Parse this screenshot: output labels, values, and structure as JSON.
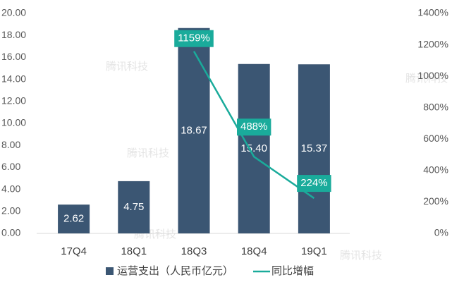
{
  "chart_data": {
    "type": "bar",
    "categories": [
      "17Q4",
      "18Q1",
      "18Q3",
      "18Q4",
      "19Q1"
    ],
    "series": [
      {
        "name": "运营支出（人民币亿元）",
        "type": "bar",
        "color": "#3b5673",
        "values": [
          2.62,
          4.75,
          18.67,
          15.4,
          15.37
        ],
        "value_labels": [
          "2.62",
          "4.75",
          "18.67",
          "15.40",
          "15.37"
        ]
      },
      {
        "name": "同比增幅",
        "type": "line",
        "axis": "y2",
        "color": "#1aab9b",
        "values": [
          null,
          null,
          1159,
          488,
          224
        ],
        "value_labels": [
          null,
          null,
          "1159%",
          "488%",
          "224%"
        ]
      }
    ],
    "ylim": [
      0,
      20
    ],
    "yticks": [
      {
        "value": 0,
        "label": "0.00"
      },
      {
        "value": 2,
        "label": "2.00"
      },
      {
        "value": 4,
        "label": "4.00"
      },
      {
        "value": 6,
        "label": "6.00"
      },
      {
        "value": 8,
        "label": "8.00"
      },
      {
        "value": 10,
        "label": "10.00"
      },
      {
        "value": 12,
        "label": "12.00"
      },
      {
        "value": 14,
        "label": "14.00"
      },
      {
        "value": 16,
        "label": "16.00"
      },
      {
        "value": 18,
        "label": "18.00"
      },
      {
        "value": 20,
        "label": "20.00"
      }
    ],
    "y2lim": [
      0,
      1400
    ],
    "y2ticks": [
      {
        "value": 0,
        "label": "0%"
      },
      {
        "value": 200,
        "label": "200%"
      },
      {
        "value": 400,
        "label": "400%"
      },
      {
        "value": 600,
        "label": "600%"
      },
      {
        "value": 800,
        "label": "800%"
      },
      {
        "value": 1000,
        "label": "1000%"
      },
      {
        "value": 1200,
        "label": "1200%"
      },
      {
        "value": 1400,
        "label": "1400%"
      }
    ],
    "grid": false,
    "legend": "bottom",
    "watermark": "腾讯科技"
  }
}
